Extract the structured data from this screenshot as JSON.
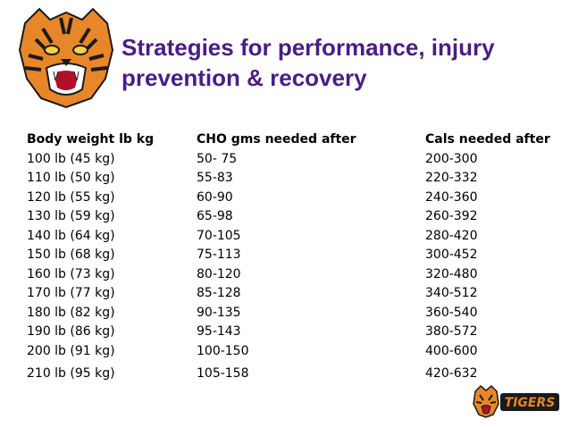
{
  "title": {
    "line1": "Strategies for performance, injury",
    "line2": "prevention & recovery"
  },
  "table": {
    "headers": [
      "Body weight lb kg",
      "CHO gms needed after",
      "Cals needed after"
    ],
    "rows": [
      [
        "100 lb (45 kg)",
        "50- 75",
        "200-300"
      ],
      [
        "110 lb (50 kg)",
        "55-83",
        "220-332"
      ],
      [
        "120 lb (55 kg)",
        "60-90",
        "240-360"
      ],
      [
        "130 lb (59 kg)",
        "65-98",
        "260-392"
      ],
      [
        "140 lb (64 kg)",
        "70-105",
        "280-420"
      ],
      [
        "150 lb (68 kg)",
        "75-113",
        "300-452"
      ],
      [
        "160 lb (73 kg)",
        "80-120",
        "320-480"
      ],
      [
        "170 lb (77 kg)",
        "85-128",
        "340-512"
      ],
      [
        "180 lb (82 kg)",
        "90-135",
        "360-540"
      ],
      [
        "190 lb (86 kg)",
        "95-143",
        "380-572"
      ],
      [
        "200 lb (91 kg)",
        "100-150",
        "400-600"
      ],
      [
        "210 lb (95 kg)",
        "105-158",
        "420-632"
      ]
    ]
  },
  "logo_small": {
    "text": "TIGERS"
  },
  "colors": {
    "title": "#4a1d86",
    "tiger_orange": "#e8862a",
    "tiger_black": "#1a1a1a"
  }
}
